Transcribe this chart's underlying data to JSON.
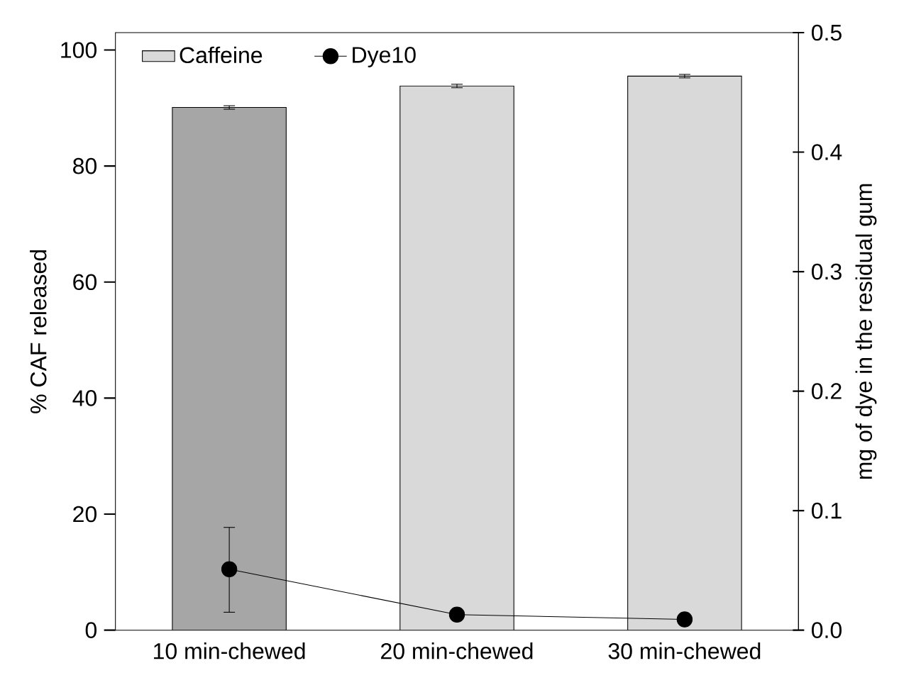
{
  "chart_data": {
    "type": "bar",
    "categories": [
      "10 min-chewed",
      "20 min-chewed",
      "30 min-chewed"
    ],
    "ylabel": "%  CAF released",
    "y2label": "mg of dye in the residual gum",
    "ylim": [
      0,
      103
    ],
    "yticks": [
      0,
      20,
      40,
      60,
      80,
      100
    ],
    "y2lim": [
      0,
      0.5
    ],
    "y2ticks": [
      {
        "value": 0,
        "label": "0.0"
      },
      0.1,
      0.2,
      0.3,
      0.4,
      0.5
    ],
    "legend": "top left",
    "series": [
      {
        "name": "Caffeine",
        "color": "#d9d9d9",
        "colors": [
          "#a6a6a6",
          "#d9d9d9",
          "#d9d9d9"
        ],
        "values": [
          90.1,
          93.8,
          95.5
        ],
        "errors": [
          0.3,
          0.3,
          0.3
        ]
      },
      {
        "name": "Dye10",
        "type": "line",
        "axis": "y2",
        "color": "#000000",
        "marker": "circle",
        "values": [
          0.051,
          0.013,
          0.009
        ],
        "errors": [
          [
            0.015,
            0.086
          ],
          null,
          null
        ]
      }
    ]
  }
}
